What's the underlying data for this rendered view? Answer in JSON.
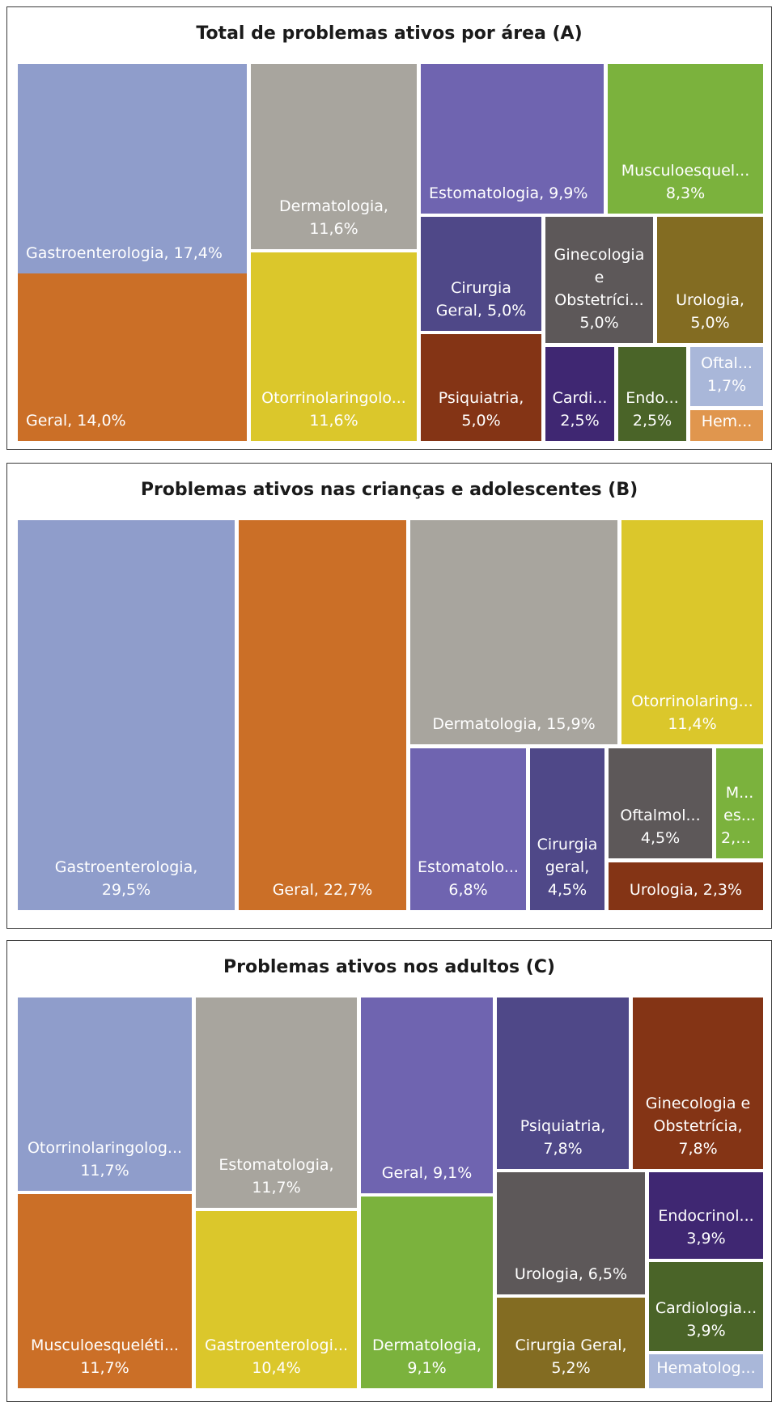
{
  "chart_data": [
    {
      "type": "treemap",
      "title": "Total de problemas ativos por área (A)",
      "series": [
        {
          "name": "Gastroenterologia",
          "value": 17.4,
          "label_lines": [
            "Gastroenterologia, 17,4%"
          ],
          "color": "#8f9dcb"
        },
        {
          "name": "Geral",
          "value": 14.0,
          "label_lines": [
            "Geral, 14,0%"
          ],
          "color": "#cb6f27"
        },
        {
          "name": "Dermatologia",
          "value": 11.6,
          "label_lines": [
            "Dermatologia,",
            "11,6%"
          ],
          "color": "#a8a59e"
        },
        {
          "name": "Otorrinolaringologia",
          "value": 11.6,
          "label_lines": [
            "Otorrinolaringolo...",
            "11,6%"
          ],
          "color": "#dbc72b"
        },
        {
          "name": "Estomatologia",
          "value": 9.9,
          "label_lines": [
            "Estomatologia, 9,9%"
          ],
          "color": "#6f64b0"
        },
        {
          "name": "Musculoesquelético",
          "value": 8.3,
          "label_lines": [
            "Musculoesquel...",
            "8,3%"
          ],
          "color": "#7bb23d"
        },
        {
          "name": "Cirurgia Geral",
          "value": 5.0,
          "label_lines": [
            "Cirurgia",
            "Geral, 5,0%"
          ],
          "color": "#4f4888"
        },
        {
          "name": "Ginecologia e Obstetrícia",
          "value": 5.0,
          "label_lines": [
            "Ginecologia",
            "e",
            "Obstetríci...",
            "5,0%"
          ],
          "color": "#5d5859"
        },
        {
          "name": "Urologia",
          "value": 5.0,
          "label_lines": [
            "Urologia,",
            "5,0%"
          ],
          "color": "#836c22"
        },
        {
          "name": "Psiquiatria",
          "value": 5.0,
          "label_lines": [
            "Psiquiatria,",
            "5,0%"
          ],
          "color": "#843415"
        },
        {
          "name": "Cardiologia",
          "value": 2.5,
          "label_lines": [
            "Cardi...",
            "2,5%"
          ],
          "color": "#3f2772"
        },
        {
          "name": "Endocrinologia",
          "value": 2.5,
          "label_lines": [
            "Endo...",
            "2,5%"
          ],
          "color": "#4a6428"
        },
        {
          "name": "Oftalmologia",
          "value": 1.7,
          "label_lines": [
            "Oftal...",
            "1,7%"
          ],
          "color": "#a9b7d9"
        },
        {
          "name": "Hematologia",
          "value": null,
          "label_lines": [
            "Hem..."
          ],
          "color": "#e0964e"
        }
      ]
    },
    {
      "type": "treemap",
      "title": "Problemas ativos nas crianças e adolescentes (B)",
      "series": [
        {
          "name": "Gastroenterologia",
          "value": 29.5,
          "label_lines": [
            "Gastroenterologia,",
            "29,5%"
          ],
          "color": "#8f9dcb"
        },
        {
          "name": "Geral",
          "value": 22.7,
          "label_lines": [
            "Geral, 22,7%"
          ],
          "color": "#cb6f27"
        },
        {
          "name": "Dermatologia",
          "value": 15.9,
          "label_lines": [
            "Dermatologia, 15,9%"
          ],
          "color": "#a8a59e"
        },
        {
          "name": "Otorrinolaringologia",
          "value": 11.4,
          "label_lines": [
            "Otorrinolaring...",
            "11,4%"
          ],
          "color": "#dbc72b"
        },
        {
          "name": "Estomatologia",
          "value": 6.8,
          "label_lines": [
            "Estomatolo...",
            "6,8%"
          ],
          "color": "#6f64b0"
        },
        {
          "name": "Cirurgia geral",
          "value": 4.5,
          "label_lines": [
            "Cirurgia",
            "geral,",
            "4,5%"
          ],
          "color": "#4f4888"
        },
        {
          "name": "Oftalmologia",
          "value": 4.5,
          "label_lines": [
            "Oftalmol...",
            "4,5%"
          ],
          "color": "#5d5859"
        },
        {
          "name": "Musculoesquelético",
          "value": 2.3,
          "label_lines": [
            "M...",
            "es...",
            "2,3%"
          ],
          "color": "#7bb23d"
        },
        {
          "name": "Urologia",
          "value": 2.3,
          "label_lines": [
            "Urologia, 2,3%"
          ],
          "color": "#843415"
        }
      ]
    },
    {
      "type": "treemap",
      "title": "Problemas ativos nos adultos (C)",
      "series": [
        {
          "name": "Otorrinolaringologia",
          "value": 11.7,
          "label_lines": [
            "Otorrinolaringolog...",
            "11,7%"
          ],
          "color": "#8f9dcb"
        },
        {
          "name": "Musculoesquelético",
          "value": 11.7,
          "label_lines": [
            "Musculoesqueléti...",
            "11,7%"
          ],
          "color": "#cb6f27"
        },
        {
          "name": "Estomatologia",
          "value": 11.7,
          "label_lines": [
            "Estomatologia,",
            "11,7%"
          ],
          "color": "#a8a59e"
        },
        {
          "name": "Gastroenterologia",
          "value": 10.4,
          "label_lines": [
            "Gastroenterologi...",
            "10,4%"
          ],
          "color": "#dbc72b"
        },
        {
          "name": "Geral",
          "value": 9.1,
          "label_lines": [
            "Geral, 9,1%"
          ],
          "color": "#6f64b0"
        },
        {
          "name": "Dermatologia",
          "value": 9.1,
          "label_lines": [
            "Dermatologia,",
            "9,1%"
          ],
          "color": "#7bb23d"
        },
        {
          "name": "Psiquiatria",
          "value": 7.8,
          "label_lines": [
            "Psiquiatria,",
            "7,8%"
          ],
          "color": "#4f4888"
        },
        {
          "name": "Ginecologia e Obstetrícia",
          "value": 7.8,
          "label_lines": [
            "Ginecologia e",
            "Obstetrícia,",
            "7,8%"
          ],
          "color": "#843415"
        },
        {
          "name": "Urologia",
          "value": 6.5,
          "label_lines": [
            "Urologia, 6,5%"
          ],
          "color": "#5d5859"
        },
        {
          "name": "Endocrinologia",
          "value": 3.9,
          "label_lines": [
            "Endocrinol...",
            "3,9%"
          ],
          "color": "#3f2772"
        },
        {
          "name": "Cirurgia Geral",
          "value": 5.2,
          "label_lines": [
            "Cirurgia Geral,",
            "5,2%"
          ],
          "color": "#836c22"
        },
        {
          "name": "Cardiologia",
          "value": 3.9,
          "label_lines": [
            "Cardiologia...",
            "3,9%"
          ],
          "color": "#4a6428"
        },
        {
          "name": "Hematologia",
          "value": null,
          "label_lines": [
            "Hematolog..."
          ],
          "color": "#a9b7d9"
        }
      ]
    }
  ]
}
